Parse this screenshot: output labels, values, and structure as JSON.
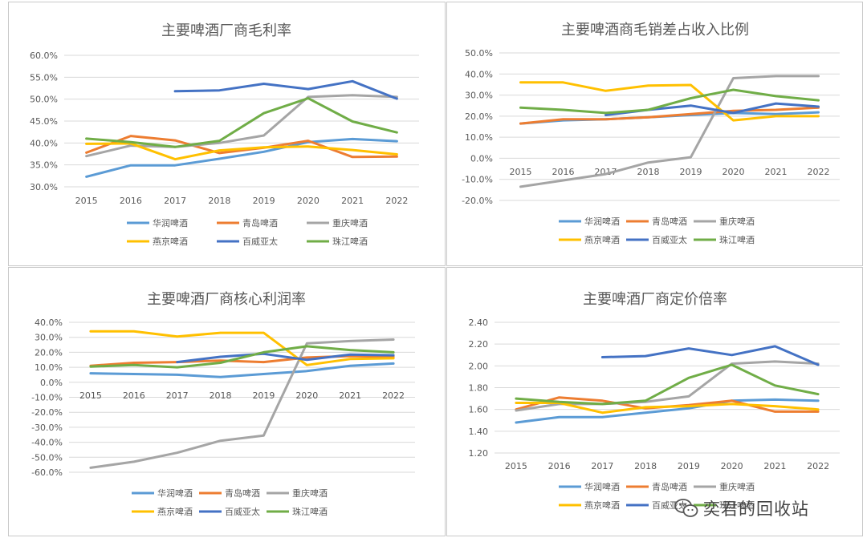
{
  "watermark": {
    "text": "奕君的回收站",
    "icon": "wechat-icon"
  },
  "colors": {
    "华润啤酒": "#5b9bd5",
    "青岛啤酒": "#ed7d31",
    "重庆啤酒": "#a5a5a5",
    "燕京啤酒": "#ffc000",
    "百威亚太": "#4472c4",
    "珠江啤酒": "#70ad47"
  },
  "chart_data": [
    {
      "id": "gross-margin",
      "type": "line",
      "title": "主要啤酒厂商毛利率",
      "categories": [
        "2015",
        "2016",
        "2017",
        "2018",
        "2019",
        "2020",
        "2021",
        "2022"
      ],
      "ylim": [
        30,
        60
      ],
      "yticks": [
        30,
        35,
        40,
        45,
        50,
        55,
        60
      ],
      "ytick_labels": [
        "30.0%",
        "35.0%",
        "40.0%",
        "45.0%",
        "50.0%",
        "55.0%",
        "60.0%"
      ],
      "xaxis_at_bottom": true,
      "legend": "bottom",
      "series": [
        {
          "name": "华润啤酒",
          "values": [
            32.3,
            34.9,
            34.9,
            36.4,
            38.0,
            40.2,
            40.9,
            40.4
          ]
        },
        {
          "name": "青岛啤酒",
          "values": [
            37.8,
            41.6,
            40.6,
            37.7,
            38.9,
            40.5,
            36.8,
            36.9
          ]
        },
        {
          "name": "重庆啤酒",
          "values": [
            37.0,
            39.4,
            39.1,
            40.0,
            41.7,
            50.5,
            50.9,
            50.5
          ]
        },
        {
          "name": "燕京啤酒",
          "values": [
            39.8,
            39.9,
            36.3,
            38.3,
            39.0,
            39.2,
            38.4,
            37.4
          ]
        },
        {
          "name": "百威亚太",
          "values": [
            null,
            null,
            51.8,
            52.0,
            53.5,
            52.3,
            54.1,
            50.1
          ]
        },
        {
          "name": "珠江啤酒",
          "values": [
            41.0,
            40.2,
            39.1,
            40.5,
            46.8,
            50.2,
            44.9,
            42.4
          ]
        }
      ]
    },
    {
      "id": "gross-sales-ratio",
      "type": "line",
      "title": "主要啤酒商毛销差占收入比例",
      "categories": [
        "2015",
        "2016",
        "2017",
        "2018",
        "2019",
        "2020",
        "2021",
        "2022"
      ],
      "ylim": [
        -20,
        50
      ],
      "yticks": [
        -20,
        -10,
        0,
        10,
        20,
        30,
        40,
        50
      ],
      "ytick_labels": [
        "-20.0%",
        "-10.0%",
        "0.0%",
        "10.0%",
        "20.0%",
        "30.0%",
        "40.0%",
        "50.0%"
      ],
      "xaxis_at_bottom": false,
      "legend": "bottom",
      "series": [
        {
          "name": "华润啤酒",
          "values": [
            16.5,
            18.0,
            18.5,
            19.5,
            20.5,
            21.5,
            21.0,
            21.8
          ]
        },
        {
          "name": "青岛啤酒",
          "values": [
            16.5,
            18.5,
            18.5,
            19.5,
            21.0,
            22.5,
            23.0,
            24.0
          ]
        },
        {
          "name": "重庆啤酒",
          "values": [
            -13.5,
            -10.5,
            -7.5,
            -2.0,
            0.5,
            38.0,
            39.0,
            39.0
          ]
        },
        {
          "name": "燕京啤酒",
          "values": [
            36.0,
            36.0,
            32.0,
            34.5,
            34.8,
            18.0,
            20.0,
            20.0
          ]
        },
        {
          "name": "百威亚太",
          "values": [
            null,
            null,
            20.5,
            23.0,
            25.0,
            21.5,
            26.0,
            24.5
          ]
        },
        {
          "name": "珠江啤酒",
          "values": [
            24.0,
            23.0,
            21.5,
            23.0,
            28.5,
            32.5,
            29.5,
            27.5
          ]
        }
      ]
    },
    {
      "id": "core-profit",
      "type": "line",
      "title": "主要啤酒厂商核心利润率",
      "categories": [
        "2015",
        "2016",
        "2017",
        "2018",
        "2019",
        "2020",
        "2021",
        "2022"
      ],
      "ylim": [
        -60,
        40
      ],
      "yticks": [
        -60,
        -50,
        -40,
        -30,
        -20,
        -10,
        0,
        10,
        20,
        30,
        40
      ],
      "ytick_labels": [
        "-60.0%",
        "-50.0%",
        "-40.0%",
        "-30.0%",
        "-20.0%",
        "-10.0%",
        "0.0%",
        "10.0%",
        "20.0%",
        "30.0%",
        "40.0%"
      ],
      "xaxis_at_bottom": false,
      "legend": "bottom",
      "series": [
        {
          "name": "华润啤酒",
          "values": [
            6.0,
            5.5,
            5.0,
            3.5,
            5.5,
            7.5,
            11.0,
            12.5
          ]
        },
        {
          "name": "青岛啤酒",
          "values": [
            11.0,
            13.0,
            13.5,
            14.5,
            13.5,
            16.5,
            17.5,
            17.0
          ]
        },
        {
          "name": "重庆啤酒",
          "values": [
            -57.0,
            -53.0,
            -47.0,
            -39.0,
            -35.5,
            26.0,
            27.5,
            28.5
          ]
        },
        {
          "name": "燕京啤酒",
          "values": [
            34.0,
            34.0,
            30.5,
            33.0,
            33.0,
            11.5,
            15.5,
            16.0
          ]
        },
        {
          "name": "百威亚太",
          "values": [
            null,
            null,
            13.5,
            17.0,
            19.0,
            15.0,
            18.5,
            18.0
          ]
        },
        {
          "name": "珠江啤酒",
          "values": [
            10.5,
            11.5,
            10.0,
            13.0,
            20.0,
            24.0,
            21.5,
            20.0
          ]
        }
      ]
    },
    {
      "id": "pricing-ratio",
      "type": "line",
      "title": "主要啤酒厂商定价倍率",
      "categories": [
        "2015",
        "2016",
        "2017",
        "2018",
        "2019",
        "2020",
        "2021",
        "2022"
      ],
      "ylim": [
        1.2,
        2.4
      ],
      "yticks": [
        1.2,
        1.4,
        1.6,
        1.8,
        2.0,
        2.2,
        2.4
      ],
      "ytick_labels": [
        "1.20",
        "1.40",
        "1.60",
        "1.80",
        "2.00",
        "2.20",
        "2.40"
      ],
      "xaxis_at_bottom": true,
      "legend": "bottom",
      "series": [
        {
          "name": "华润啤酒",
          "values": [
            1.48,
            1.53,
            1.53,
            1.57,
            1.61,
            1.68,
            1.69,
            1.68
          ]
        },
        {
          "name": "青岛啤酒",
          "values": [
            1.6,
            1.71,
            1.68,
            1.61,
            1.64,
            1.68,
            1.58,
            1.58
          ]
        },
        {
          "name": "重庆啤酒",
          "values": [
            1.59,
            1.65,
            1.65,
            1.67,
            1.72,
            2.02,
            2.04,
            2.02
          ]
        },
        {
          "name": "燕京啤酒",
          "values": [
            1.66,
            1.66,
            1.57,
            1.62,
            1.63,
            1.65,
            1.63,
            1.6
          ]
        },
        {
          "name": "百威亚太",
          "values": [
            null,
            null,
            2.08,
            2.09,
            2.16,
            2.1,
            2.18,
            2.01
          ]
        },
        {
          "name": "珠江啤酒",
          "values": [
            1.7,
            1.67,
            1.65,
            1.68,
            1.89,
            2.01,
            1.82,
            1.74
          ]
        }
      ]
    }
  ]
}
